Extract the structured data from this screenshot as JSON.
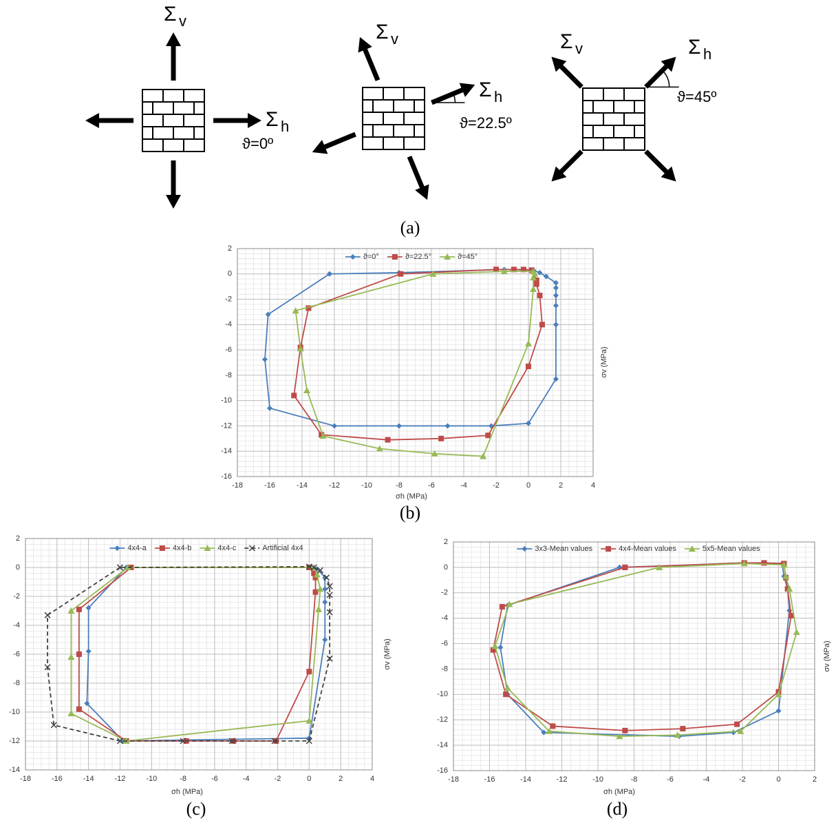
{
  "diagram": {
    "caption": "(a)",
    "panels": [
      {
        "angle": 0,
        "angle_label": "ϑ=0º",
        "sigma_v": {
          "symbol": "Σ",
          "sub": "v"
        },
        "sigma_h": {
          "symbol": "Σ",
          "sub": "h"
        }
      },
      {
        "angle": 22.5,
        "angle_label": "ϑ=22.5º",
        "sigma_v": {
          "symbol": "Σ",
          "sub": "v"
        },
        "sigma_h": {
          "symbol": "Σ",
          "sub": "h"
        }
      },
      {
        "angle": 45,
        "angle_label": "ϑ=45º",
        "sigma_v": {
          "symbol": "Σ",
          "sub": "v"
        },
        "sigma_h": {
          "symbol": "Σ",
          "sub": "h"
        }
      }
    ]
  },
  "chart_data": [
    {
      "type": "line",
      "caption": "(b)",
      "x_label": "σh (MPa)",
      "y_label": "σv (MPa)",
      "xlim": [
        -18,
        4
      ],
      "ylim": [
        -16,
        2
      ],
      "xticks": [
        -18,
        -16,
        -14,
        -12,
        -10,
        -8,
        -6,
        -4,
        -2,
        0,
        2,
        4
      ],
      "yticks": [
        -16,
        -14,
        -12,
        -10,
        -8,
        -6,
        -4,
        -2,
        0,
        2
      ],
      "grid": true,
      "minor_grid": true,
      "legend": "top",
      "series": [
        {
          "name": "ϑ=0°",
          "color": "#4a7ebb",
          "marker": "diamond",
          "x": [
            -12.3,
            -16.1,
            -16.3,
            -16,
            -12,
            -8,
            -5,
            -2.3,
            0,
            1.7,
            1.7,
            1.7,
            1.7,
            1.7,
            1.7,
            1.1,
            0.7,
            0.3,
            -1.5,
            -8,
            -12.3
          ],
          "values": [
            0,
            -3.2,
            -6.75,
            -10.6,
            -12,
            -12,
            -12,
            -12,
            -11.8,
            -8.3,
            -4,
            -2.5,
            -1.7,
            -1.1,
            -0.7,
            -0.2,
            0.1,
            0.3,
            0.35,
            0.1,
            0
          ]
        },
        {
          "name": "ϑ=22.5°",
          "color": "#be4b48",
          "marker": "square",
          "x": [
            -2,
            -0.9,
            -0.3,
            0.2,
            0.5,
            0.5,
            0.7,
            0.85,
            0,
            -2.5,
            -5.4,
            -8.7,
            -12.8,
            -14.5,
            -14.1,
            -13.6,
            -7.9,
            -2
          ],
          "values": [
            0.35,
            0.35,
            0.35,
            0.3,
            -0.5,
            -0.8,
            -1.7,
            -4,
            -7.3,
            -12.75,
            -13,
            -13.1,
            -12.7,
            -9.6,
            -5.8,
            -2.7,
            0,
            0.35
          ]
        },
        {
          "name": "ϑ=45°",
          "color": "#98b954",
          "marker": "triangle",
          "x": [
            -5.9,
            -1.5,
            0.3,
            0.4,
            0.3,
            0.3,
            0,
            -2.8,
            -5.8,
            -9.2,
            -12.7,
            -13.7,
            -14.1,
            -14.4,
            -5.9
          ],
          "values": [
            0,
            0.2,
            0.2,
            0,
            -0.3,
            -1.2,
            -5.5,
            -14.4,
            -14.2,
            -13.8,
            -12.8,
            -9.2,
            -5.9,
            -2.9,
            0
          ]
        }
      ]
    },
    {
      "type": "line",
      "caption": "(c)",
      "x_label": "σh (MPa)",
      "y_label": "σv (MPa)",
      "xlim": [
        -18,
        4
      ],
      "ylim": [
        -14,
        2
      ],
      "xticks": [
        -18,
        -16,
        -14,
        -12,
        -10,
        -8,
        -6,
        -4,
        -2,
        0,
        2,
        4
      ],
      "yticks": [
        -14,
        -12,
        -10,
        -8,
        -6,
        -4,
        -2,
        0,
        2
      ],
      "grid": true,
      "minor_grid": true,
      "legend": "top",
      "series": [
        {
          "name": "4x4-a",
          "color": "#4a7ebb",
          "marker": "diamond",
          "x": [
            -11.6,
            -14,
            -14,
            -14.1,
            -11.8,
            0,
            1,
            1,
            1,
            1,
            0.5,
            0,
            -11.6
          ],
          "values": [
            0,
            -2.8,
            -5.8,
            -9.4,
            -12,
            -11.8,
            -5,
            -2.4,
            -1.5,
            -0.7,
            -0.1,
            0,
            0
          ]
        },
        {
          "name": "4x4-b",
          "color": "#be4b48",
          "marker": "square",
          "x": [
            -11.3,
            -14.6,
            -14.6,
            -14.6,
            -11.6,
            -7.8,
            -4.8,
            -2.1,
            0,
            0.4,
            0.4,
            0.3,
            0,
            -11.3
          ],
          "values": [
            0,
            -2.9,
            -6,
            -9.8,
            -12,
            -12,
            -12,
            -12,
            -7.2,
            -1.7,
            -0.7,
            -0.4,
            0,
            0
          ]
        },
        {
          "name": "4x4-c",
          "color": "#98b954",
          "marker": "triangle",
          "x": [
            -11.5,
            -15.1,
            -15.1,
            -15.1,
            -11.6,
            0,
            0.6,
            0.7,
            0.5,
            0.3,
            -11.5
          ],
          "values": [
            0,
            -3,
            -6.2,
            -10.1,
            -12,
            -10.6,
            -2.9,
            -1.5,
            -0.5,
            0,
            0
          ]
        },
        {
          "name": "Artificial 4x4",
          "color": "#404040",
          "marker": "x",
          "dash": true,
          "x": [
            -12,
            -16.6,
            -16.6,
            -16.2,
            -12,
            -8,
            -4.9,
            -2.2,
            0,
            1.3,
            1.3,
            1.3,
            1.3,
            1.1,
            0.7,
            0.3,
            0,
            -12
          ],
          "values": [
            0,
            -3.3,
            -6.9,
            -10.9,
            -12,
            -12,
            -12,
            -12,
            -12,
            -6.3,
            -3.1,
            -1.9,
            -1.3,
            -0.7,
            -0.2,
            0,
            0.05,
            0
          ]
        }
      ]
    },
    {
      "type": "line",
      "caption": "(d)",
      "x_label": "σh (MPa)",
      "y_label": "σv (MPa)",
      "xlim": [
        -18,
        2
      ],
      "ylim": [
        -16,
        2
      ],
      "xticks": [
        -18,
        -16,
        -14,
        -12,
        -10,
        -8,
        -6,
        -4,
        -2,
        0,
        2
      ],
      "yticks": [
        -16,
        -14,
        -12,
        -10,
        -8,
        -6,
        -4,
        -2,
        0,
        2
      ],
      "grid": true,
      "minor_grid": true,
      "legend": "top",
      "series": [
        {
          "name": "3x3-Mean values",
          "color": "#4a7ebb",
          "marker": "diamond",
          "x": [
            -8.8,
            -15,
            -15.4,
            -15,
            -13,
            -5.5,
            -2.5,
            0,
            0.6,
            0.5,
            0.3,
            0.2,
            -1.9,
            -8.8
          ],
          "values": [
            0,
            -3,
            -6.3,
            -10,
            -13,
            -13.3,
            -13,
            -11.3,
            -3.4,
            -1.7,
            -0.7,
            0.3,
            0.35,
            0
          ]
        },
        {
          "name": "4x4-Mean values",
          "color": "#be4b48",
          "marker": "square",
          "x": [
            -8.5,
            -15.3,
            -15.8,
            -15.1,
            -12.5,
            -8.5,
            -5.3,
            -2.3,
            0,
            0.7,
            0.5,
            0.4,
            0.3,
            -0.8,
            -1.9,
            -8.5
          ],
          "values": [
            0,
            -3.1,
            -6.5,
            -10,
            -12.5,
            -12.85,
            -12.7,
            -12.35,
            -9.8,
            -3.8,
            -1.7,
            -0.8,
            0.3,
            0.35,
            0.35,
            0
          ]
        },
        {
          "name": "5x5-Mean values",
          "color": "#98b954",
          "marker": "triangle",
          "x": [
            -6.6,
            -14.9,
            -15.7,
            -15,
            -12.7,
            -8.8,
            -5.6,
            -2.1,
            0,
            1,
            0.6,
            0.4,
            0.3,
            -1.9,
            -6.6
          ],
          "values": [
            0,
            -2.9,
            -6.2,
            -9.5,
            -12.9,
            -13.3,
            -13.2,
            -12.9,
            -10,
            -5.1,
            -1.7,
            -0.7,
            0.2,
            0.3,
            0
          ]
        }
      ]
    }
  ]
}
